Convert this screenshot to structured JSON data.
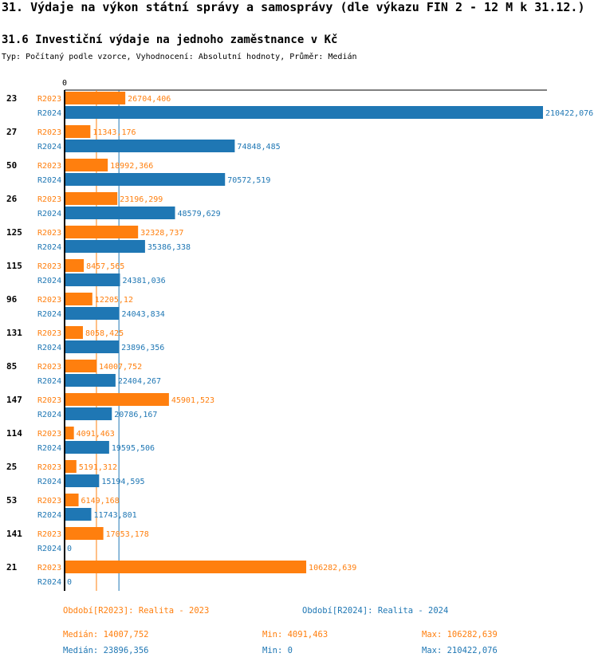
{
  "header": {
    "title": "31. Výdaje na výkon státní správy a samosprávy (dle výkazu FIN 2 - 12 M k 31.12.)",
    "subtitle": "31.6 Investiční výdaje na jednoho zaměstnance v Kč",
    "type_line": "Typ: Počítaný podle vzorce, Vyhodnocení: Absolutní hodnoty, Průměr: Medián"
  },
  "colors": {
    "r2023": "#ff7f0e",
    "r2024": "#1f77b4",
    "axis": "#000000"
  },
  "chart_data": {
    "type": "bar",
    "orientation": "horizontal",
    "title": "31.6 Investiční výdaje na jednoho zaměstnance v Kč",
    "x_axis_zero_label": "0",
    "xlim": [
      0,
      210422.076
    ],
    "categories": [
      "23",
      "27",
      "50",
      "26",
      "125",
      "115",
      "96",
      "131",
      "85",
      "147",
      "114",
      "25",
      "53",
      "141",
      "21"
    ],
    "series": [
      {
        "name": "R2023",
        "values": [
          26704.406,
          11343.176,
          18992.366,
          23196.299,
          32328.737,
          8457.565,
          12205.12,
          8058.425,
          14007.752,
          45901.523,
          4091.463,
          5191.312,
          6149.168,
          17053.178,
          106282.639
        ],
        "labels": [
          "26704,406",
          "11343,176",
          "18992,366",
          "23196,299",
          "32328,737",
          "8457,565",
          "12205,12",
          "8058,425",
          "14007,752",
          "45901,523",
          "4091,463",
          "5191,312",
          "6149,168",
          "17053,178",
          "106282,639"
        ]
      },
      {
        "name": "R2024",
        "values": [
          210422.076,
          74848.485,
          70572.519,
          48579.629,
          35386.338,
          24381.036,
          24043.834,
          23896.356,
          22404.267,
          20786.167,
          19595.506,
          15194.595,
          11743.801,
          0,
          0
        ],
        "labels": [
          "210422,076",
          "74848,485",
          "70572,519",
          "48579,629",
          "35386,338",
          "24381,036",
          "24043,834",
          "23896,356",
          "22404,267",
          "20786,167",
          "19595,506",
          "15194,595",
          "11743,801",
          "0",
          "0"
        ]
      }
    ],
    "median_lines": {
      "R2023": 14007.752,
      "R2024": 23896.356
    }
  },
  "legend": {
    "r2023": "Období[R2023]: Realita - 2023",
    "r2024": "Období[R2024]: Realita - 2024"
  },
  "stats": {
    "r2023": {
      "median": "Medián: 14007,752",
      "min": "Min: 4091,463",
      "max": "Max: 106282,639"
    },
    "r2024": {
      "median": "Medián: 23896,356",
      "min": "Min: 0",
      "max": "Max: 210422,076"
    }
  }
}
